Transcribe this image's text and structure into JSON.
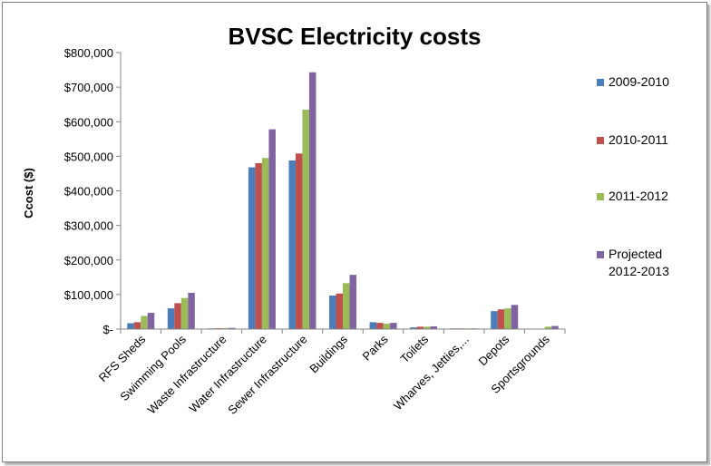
{
  "chart_data": {
    "type": "bar",
    "title": "BVSC Electricity costs",
    "xlabel": "",
    "ylabel": "Ccost ($)",
    "ylim": [
      0,
      800000
    ],
    "ytick_values": [
      0,
      100000,
      200000,
      300000,
      400000,
      500000,
      600000,
      700000,
      800000
    ],
    "ytick_labels": [
      "$-",
      "$100,000",
      "$200,000",
      "$300,000",
      "$400,000",
      "$500,000",
      "$600,000",
      "$700,000",
      "$800,000"
    ],
    "grid": false,
    "legend_position": "right",
    "categories": [
      "RFS Sheds",
      "Swimming Pools",
      "Waste Infrastructure",
      "Water Infrastructure",
      "Sewer Infrastructure",
      "Buildings",
      "Parks",
      "Toilets",
      "Wharves, Jetties,...",
      "Depots",
      "Sportsgrounds"
    ],
    "series": [
      {
        "name": "2009-2010",
        "legend_lines": [
          "2009-2010"
        ],
        "color": "#4a7ebb",
        "values": [
          17000,
          60000,
          2000,
          468000,
          488000,
          97000,
          20000,
          5000,
          2000,
          52000,
          0
        ]
      },
      {
        "name": "2010-2011",
        "legend_lines": [
          "2010-2011"
        ],
        "color": "#c0504d",
        "values": [
          20000,
          75000,
          2500,
          480000,
          508000,
          103000,
          18000,
          7000,
          2000,
          57000,
          0
        ]
      },
      {
        "name": "2011-2012",
        "legend_lines": [
          "2011-2012"
        ],
        "color": "#9bbb59",
        "values": [
          38000,
          90000,
          3000,
          495000,
          635000,
          133000,
          16000,
          7000,
          2000,
          60000,
          7000
        ]
      },
      {
        "name": "Projected 2012-2013",
        "legend_lines": [
          "Projected",
          "2012-2013"
        ],
        "color": "#8064a2",
        "values": [
          47000,
          105000,
          3500,
          578000,
          743000,
          157000,
          18000,
          8000,
          2000,
          70000,
          9000
        ]
      }
    ]
  }
}
